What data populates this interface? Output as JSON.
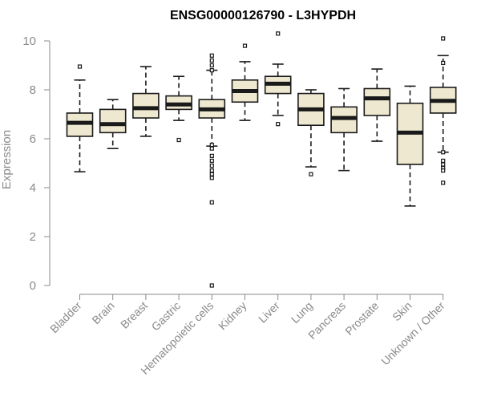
{
  "colors": {
    "box_fill": "#efe8d0",
    "box_stroke": "#1a1a1a",
    "axis": "#8a8a8a",
    "text": "#8a8a8a",
    "title": "#000000"
  },
  "chart_data": {
    "type": "boxplot",
    "title": "ENSG00000126790 - L3HYPDH",
    "xlabel": "",
    "ylabel": "Expression",
    "ylim": [
      0,
      10
    ],
    "yticks": [
      0,
      2,
      4,
      6,
      8,
      10
    ],
    "grid": false,
    "legend": "none",
    "categories": [
      "Bladder",
      "Brain",
      "Breast",
      "Gastric",
      "Hematopoietic cells",
      "Kidney",
      "Liver",
      "Lung",
      "Pancreas",
      "Prostate",
      "Skin",
      "Unknown / Other"
    ],
    "boxes": [
      {
        "whisker_low": 4.65,
        "q1": 6.1,
        "median": 6.65,
        "q3": 7.05,
        "whisker_high": 8.4,
        "outliers": [
          8.95
        ]
      },
      {
        "whisker_low": 5.6,
        "q1": 6.25,
        "median": 6.6,
        "q3": 7.2,
        "whisker_high": 7.6,
        "outliers": []
      },
      {
        "whisker_low": 6.1,
        "q1": 6.85,
        "median": 7.25,
        "q3": 7.85,
        "whisker_high": 8.95,
        "outliers": []
      },
      {
        "whisker_low": 6.75,
        "q1": 7.2,
        "median": 7.4,
        "q3": 7.75,
        "whisker_high": 8.55,
        "outliers": [
          5.95
        ]
      },
      {
        "whisker_low": 5.7,
        "q1": 6.85,
        "median": 7.2,
        "q3": 7.6,
        "whisker_high": 8.8,
        "outliers": [
          9.4,
          9.2,
          9.0,
          8.8,
          5.75,
          5.6,
          5.3,
          5.1,
          4.9,
          4.7,
          4.55,
          4.4,
          3.4,
          0.0
        ]
      },
      {
        "whisker_low": 6.75,
        "q1": 7.5,
        "median": 7.95,
        "q3": 8.4,
        "whisker_high": 9.15,
        "outliers": [
          9.8
        ]
      },
      {
        "whisker_low": 6.95,
        "q1": 7.85,
        "median": 8.25,
        "q3": 8.55,
        "whisker_high": 9.05,
        "outliers": [
          10.3,
          6.6
        ]
      },
      {
        "whisker_low": 4.85,
        "q1": 6.55,
        "median": 7.2,
        "q3": 7.85,
        "whisker_high": 8.0,
        "outliers": [
          4.55
        ]
      },
      {
        "whisker_low": 4.7,
        "q1": 6.25,
        "median": 6.85,
        "q3": 7.3,
        "whisker_high": 8.05,
        "outliers": []
      },
      {
        "whisker_low": 5.9,
        "q1": 6.95,
        "median": 7.65,
        "q3": 8.05,
        "whisker_high": 8.85,
        "outliers": []
      },
      {
        "whisker_low": 3.25,
        "q1": 4.95,
        "median": 6.25,
        "q3": 7.45,
        "whisker_high": 8.15,
        "outliers": []
      },
      {
        "whisker_low": 5.45,
        "q1": 7.05,
        "median": 7.55,
        "q3": 8.1,
        "whisker_high": 9.4,
        "outliers": [
          10.1,
          9.1,
          5.45,
          5.1,
          4.95,
          4.8,
          4.7,
          4.2
        ]
      }
    ]
  }
}
